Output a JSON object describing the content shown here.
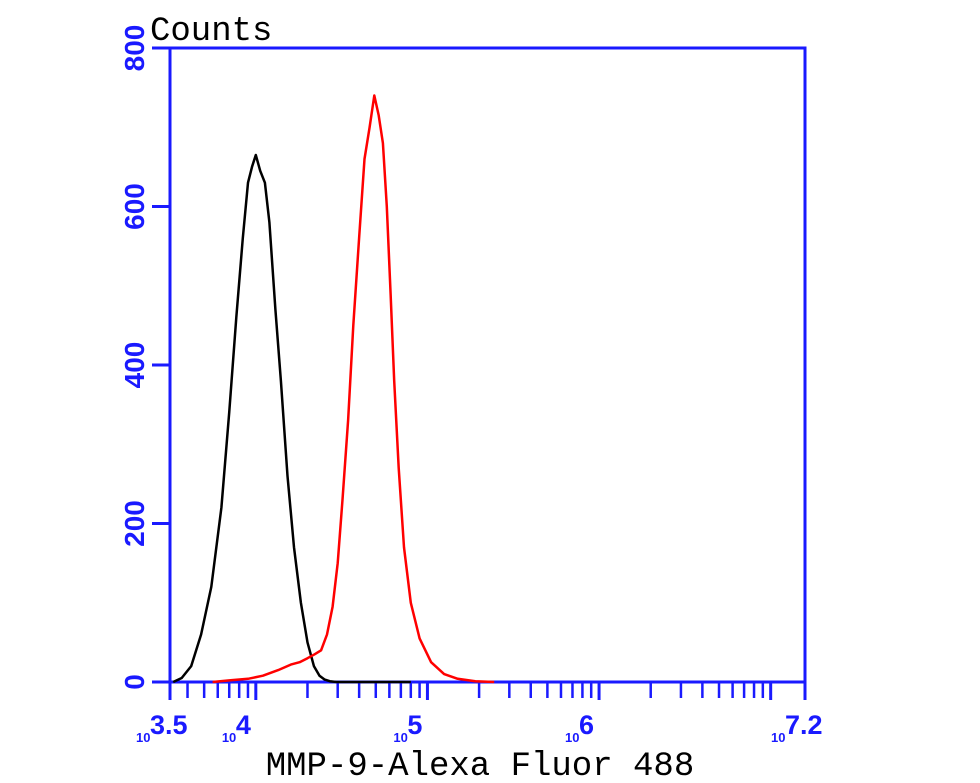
{
  "chart_data": {
    "type": "line",
    "title": "",
    "ylabel": "Counts",
    "xlabel": "MMP-9-Alexa Fluor 488",
    "x_scale": "log",
    "xlim": [
      3162,
      15849000
    ],
    "ylim": [
      0,
      800
    ],
    "yticks": [
      0,
      200,
      400,
      600,
      800
    ],
    "xticks": [
      {
        "value": 3162,
        "base": "10",
        "exp": "3.5"
      },
      {
        "value": 10000,
        "base": "10",
        "exp": "4"
      },
      {
        "value": 100000,
        "base": "10",
        "exp": "5"
      },
      {
        "value": 1000000,
        "base": "10",
        "exp": "6"
      },
      {
        "value": 15849000,
        "base": "10",
        "exp": "7.2"
      }
    ],
    "grid": false,
    "colors": {
      "axis": "#1a1aff",
      "text": "#000000"
    },
    "series": [
      {
        "color": "#000000",
        "x": [
          3300,
          3700,
          4200,
          4800,
          5500,
          6300,
          7000,
          7700,
          8400,
          9000,
          9500,
          10000,
          10600,
          11300,
          12000,
          13000,
          14000,
          15300,
          16700,
          18300,
          20000,
          21800,
          23500,
          25200,
          27000,
          29500,
          33000,
          38000,
          45000,
          55000,
          62000,
          70000,
          80000
        ],
        "y": [
          0,
          5,
          20,
          60,
          120,
          220,
          340,
          460,
          560,
          630,
          650,
          665,
          645,
          630,
          580,
          470,
          380,
          260,
          170,
          100,
          50,
          20,
          8,
          3,
          1,
          0,
          0,
          0,
          0,
          0,
          0,
          0,
          0
        ]
      },
      {
        "color": "#ff0000",
        "x": [
          5600,
          7000,
          9000,
          11000,
          13500,
          16000,
          18000,
          20000,
          22000,
          24000,
          26000,
          28000,
          30000,
          32000,
          34500,
          37000,
          40000,
          43000,
          46000,
          49000,
          52000,
          55000,
          58000,
          61000,
          64000,
          68000,
          73000,
          80000,
          90000,
          105000,
          125000,
          150000,
          190000,
          245000
        ],
        "y": [
          0,
          2,
          4,
          8,
          15,
          22,
          25,
          30,
          35,
          40,
          60,
          95,
          150,
          230,
          330,
          450,
          560,
          660,
          700,
          740,
          715,
          680,
          600,
          490,
          380,
          270,
          170,
          100,
          55,
          25,
          10,
          4,
          1,
          0
        ]
      }
    ]
  }
}
